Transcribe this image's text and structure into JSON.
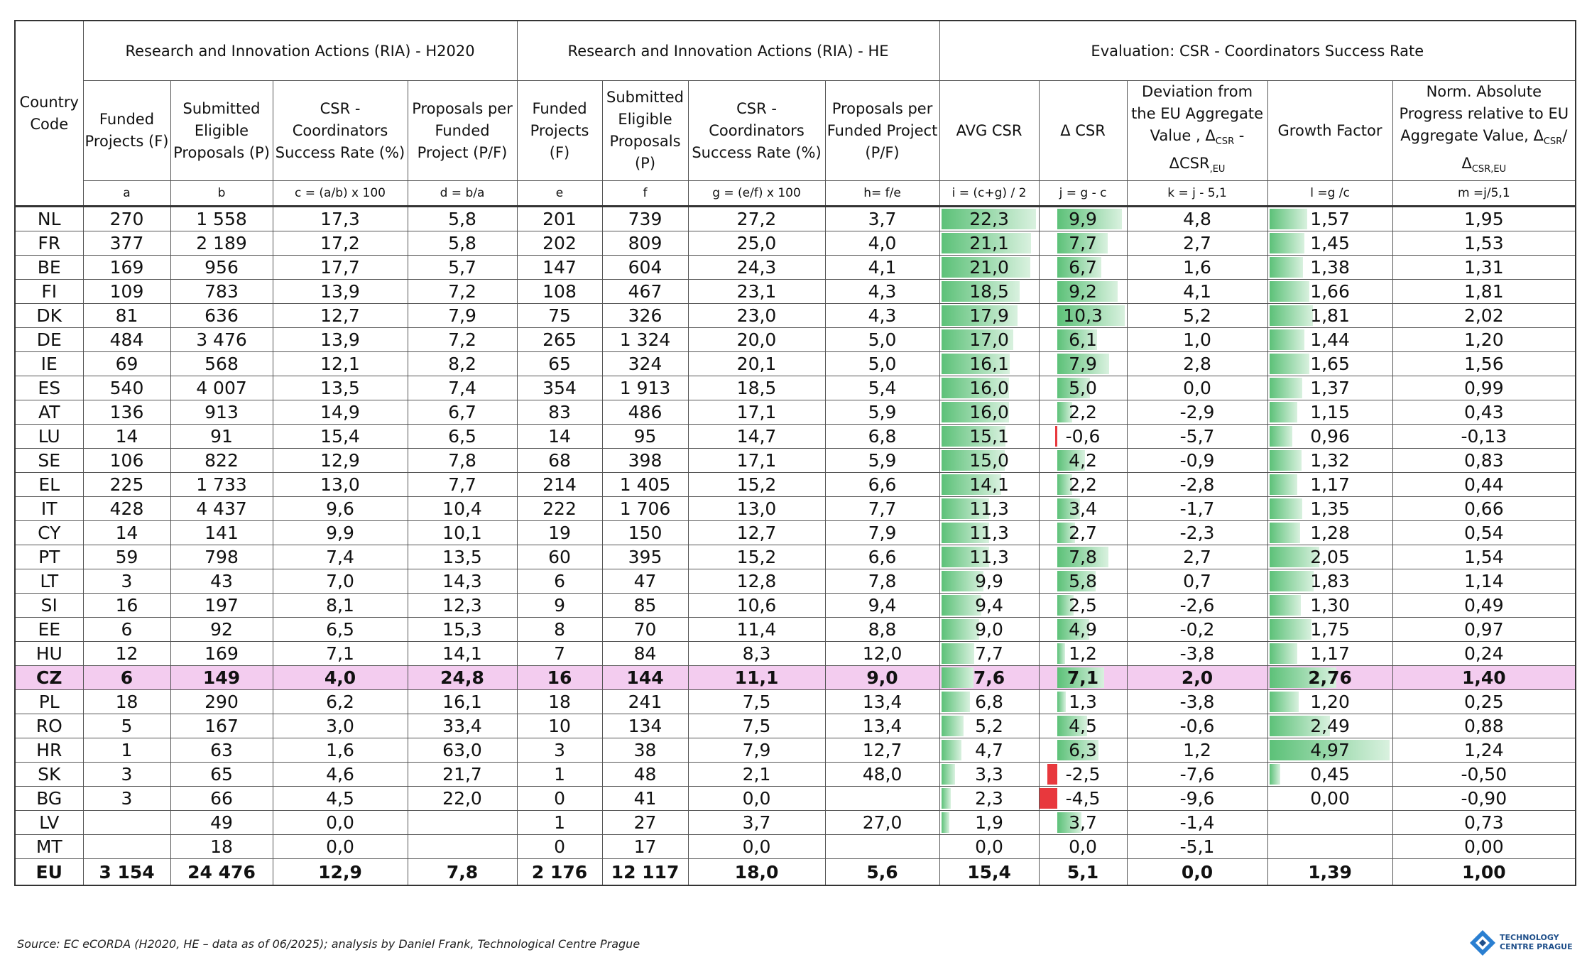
{
  "headers": {
    "country_code": "Country Code",
    "group_h2020": "Research and Innovation Actions (RIA) - H2020",
    "group_he": "Research and Innovation Actions (RIA) - HE",
    "group_eval": "Evaluation: CSR - Coordinators Success Rate",
    "funded_projects": "Funded Projects (F)",
    "submitted_eligible": "Submitted Eligible Proposals (P)",
    "csr_rate": "CSR - Coordinators Success Rate (%)",
    "proposals_per_funded": "Proposals per Funded Project (P/F)",
    "proposals_per_funded_he": "Proposals per Funded Project (P/F)",
    "avg_csr": "AVG CSR",
    "delta_csr": "Δ CSR",
    "deviation": "Deviation from the EU Aggregate Value , Δ",
    "deviation_sub1": "CSR",
    "deviation_mid": " - ΔCSR",
    "deviation_sub2": ",EU",
    "growth_factor": "Growth Factor",
    "norm_progress": "Norm. Absolute Progress relative to EU Aggregate Value, Δ",
    "norm_sub1": "CSR",
    "norm_mid": "/Δ",
    "norm_sub2": "CSR,EU"
  },
  "formulas": [
    "a",
    "b",
    "c = (a/b) x 100",
    "d = b/a",
    "e",
    "f",
    "g = (e/f) x 100",
    "h= f/e",
    "i = (c+g) / 2",
    "j = g - c",
    "k = j - 5,1",
    "l =g /c",
    "m =j/5,1"
  ],
  "rows": [
    {
      "cc": "NL",
      "a": "270",
      "b": "1 558",
      "c": "17,3",
      "d": "5,8",
      "e": "201",
      "f": "739",
      "g": "27,2",
      "h": "3,7",
      "i": "22,3",
      "j": "9,9",
      "k": "4,8",
      "l": "1,57",
      "m": "1,95",
      "iv": 22.3,
      "jv": 9.9,
      "lv": 1.57
    },
    {
      "cc": "FR",
      "a": "377",
      "b": "2 189",
      "c": "17,2",
      "d": "5,8",
      "e": "202",
      "f": "809",
      "g": "25,0",
      "h": "4,0",
      "i": "21,1",
      "j": "7,7",
      "k": "2,7",
      "l": "1,45",
      "m": "1,53",
      "iv": 21.1,
      "jv": 7.7,
      "lv": 1.45
    },
    {
      "cc": "BE",
      "a": "169",
      "b": "956",
      "c": "17,7",
      "d": "5,7",
      "e": "147",
      "f": "604",
      "g": "24,3",
      "h": "4,1",
      "i": "21,0",
      "j": "6,7",
      "k": "1,6",
      "l": "1,38",
      "m": "1,31",
      "iv": 21.0,
      "jv": 6.7,
      "lv": 1.38
    },
    {
      "cc": "FI",
      "a": "109",
      "b": "783",
      "c": "13,9",
      "d": "7,2",
      "e": "108",
      "f": "467",
      "g": "23,1",
      "h": "4,3",
      "i": "18,5",
      "j": "9,2",
      "k": "4,1",
      "l": "1,66",
      "m": "1,81",
      "iv": 18.5,
      "jv": 9.2,
      "lv": 1.66
    },
    {
      "cc": "DK",
      "a": "81",
      "b": "636",
      "c": "12,7",
      "d": "7,9",
      "e": "75",
      "f": "326",
      "g": "23,0",
      "h": "4,3",
      "i": "17,9",
      "j": "10,3",
      "k": "5,2",
      "l": "1,81",
      "m": "2,02",
      "iv": 17.9,
      "jv": 10.3,
      "lv": 1.81
    },
    {
      "cc": "DE",
      "a": "484",
      "b": "3 476",
      "c": "13,9",
      "d": "7,2",
      "e": "265",
      "f": "1 324",
      "g": "20,0",
      "h": "5,0",
      "i": "17,0",
      "j": "6,1",
      "k": "1,0",
      "l": "1,44",
      "m": "1,20",
      "iv": 17.0,
      "jv": 6.1,
      "lv": 1.44
    },
    {
      "cc": "IE",
      "a": "69",
      "b": "568",
      "c": "12,1",
      "d": "8,2",
      "e": "65",
      "f": "324",
      "g": "20,1",
      "h": "5,0",
      "i": "16,1",
      "j": "7,9",
      "k": "2,8",
      "l": "1,65",
      "m": "1,56",
      "iv": 16.1,
      "jv": 7.9,
      "lv": 1.65
    },
    {
      "cc": "ES",
      "a": "540",
      "b": "4 007",
      "c": "13,5",
      "d": "7,4",
      "e": "354",
      "f": "1 913",
      "g": "18,5",
      "h": "5,4",
      "i": "16,0",
      "j": "5,0",
      "k": "0,0",
      "l": "1,37",
      "m": "0,99",
      "iv": 16.0,
      "jv": 5.0,
      "lv": 1.37
    },
    {
      "cc": "AT",
      "a": "136",
      "b": "913",
      "c": "14,9",
      "d": "6,7",
      "e": "83",
      "f": "486",
      "g": "17,1",
      "h": "5,9",
      "i": "16,0",
      "j": "2,2",
      "k": "-2,9",
      "l": "1,15",
      "m": "0,43",
      "iv": 16.0,
      "jv": 2.2,
      "lv": 1.15
    },
    {
      "cc": "LU",
      "a": "14",
      "b": "91",
      "c": "15,4",
      "d": "6,5",
      "e": "14",
      "f": "95",
      "g": "14,7",
      "h": "6,8",
      "i": "15,1",
      "j": "-0,6",
      "k": "-5,7",
      "l": "0,96",
      "m": "-0,13",
      "iv": 15.1,
      "jv": -0.6,
      "lv": 0.96
    },
    {
      "cc": "SE",
      "a": "106",
      "b": "822",
      "c": "12,9",
      "d": "7,8",
      "e": "68",
      "f": "398",
      "g": "17,1",
      "h": "5,9",
      "i": "15,0",
      "j": "4,2",
      "k": "-0,9",
      "l": "1,32",
      "m": "0,83",
      "iv": 15.0,
      "jv": 4.2,
      "lv": 1.32
    },
    {
      "cc": "EL",
      "a": "225",
      "b": "1 733",
      "c": "13,0",
      "d": "7,7",
      "e": "214",
      "f": "1 405",
      "g": "15,2",
      "h": "6,6",
      "i": "14,1",
      "j": "2,2",
      "k": "-2,8",
      "l": "1,17",
      "m": "0,44",
      "iv": 14.1,
      "jv": 2.2,
      "lv": 1.17
    },
    {
      "cc": "IT",
      "a": "428",
      "b": "4 437",
      "c": "9,6",
      "d": "10,4",
      "e": "222",
      "f": "1 706",
      "g": "13,0",
      "h": "7,7",
      "i": "11,3",
      "j": "3,4",
      "k": "-1,7",
      "l": "1,35",
      "m": "0,66",
      "iv": 11.3,
      "jv": 3.4,
      "lv": 1.35
    },
    {
      "cc": "CY",
      "a": "14",
      "b": "141",
      "c": "9,9",
      "d": "10,1",
      "e": "19",
      "f": "150",
      "g": "12,7",
      "h": "7,9",
      "i": "11,3",
      "j": "2,7",
      "k": "-2,3",
      "l": "1,28",
      "m": "0,54",
      "iv": 11.3,
      "jv": 2.7,
      "lv": 1.28
    },
    {
      "cc": "PT",
      "a": "59",
      "b": "798",
      "c": "7,4",
      "d": "13,5",
      "e": "60",
      "f": "395",
      "g": "15,2",
      "h": "6,6",
      "i": "11,3",
      "j": "7,8",
      "k": "2,7",
      "l": "2,05",
      "m": "1,54",
      "iv": 11.3,
      "jv": 7.8,
      "lv": 2.05
    },
    {
      "cc": "LT",
      "a": "3",
      "b": "43",
      "c": "7,0",
      "d": "14,3",
      "e": "6",
      "f": "47",
      "g": "12,8",
      "h": "7,8",
      "i": "9,9",
      "j": "5,8",
      "k": "0,7",
      "l": "1,83",
      "m": "1,14",
      "iv": 9.9,
      "jv": 5.8,
      "lv": 1.83
    },
    {
      "cc": "SI",
      "a": "16",
      "b": "197",
      "c": "8,1",
      "d": "12,3",
      "e": "9",
      "f": "85",
      "g": "10,6",
      "h": "9,4",
      "i": "9,4",
      "j": "2,5",
      "k": "-2,6",
      "l": "1,30",
      "m": "0,49",
      "iv": 9.4,
      "jv": 2.5,
      "lv": 1.3
    },
    {
      "cc": "EE",
      "a": "6",
      "b": "92",
      "c": "6,5",
      "d": "15,3",
      "e": "8",
      "f": "70",
      "g": "11,4",
      "h": "8,8",
      "i": "9,0",
      "j": "4,9",
      "k": "-0,2",
      "l": "1,75",
      "m": "0,97",
      "iv": 9.0,
      "jv": 4.9,
      "lv": 1.75
    },
    {
      "cc": "HU",
      "a": "12",
      "b": "169",
      "c": "7,1",
      "d": "14,1",
      "e": "7",
      "f": "84",
      "g": "8,3",
      "h": "12,0",
      "i": "7,7",
      "j": "1,2",
      "k": "-3,8",
      "l": "1,17",
      "m": "0,24",
      "iv": 7.7,
      "jv": 1.2,
      "lv": 1.17
    },
    {
      "cc": "CZ",
      "a": "6",
      "b": "149",
      "c": "4,0",
      "d": "24,8",
      "e": "16",
      "f": "144",
      "g": "11,1",
      "h": "9,0",
      "i": "7,6",
      "j": "7,1",
      "k": "2,0",
      "l": "2,76",
      "m": "1,40",
      "iv": 7.6,
      "jv": 7.1,
      "lv": 2.76,
      "highlight": true
    },
    {
      "cc": "PL",
      "a": "18",
      "b": "290",
      "c": "6,2",
      "d": "16,1",
      "e": "18",
      "f": "241",
      "g": "7,5",
      "h": "13,4",
      "i": "6,8",
      "j": "1,3",
      "k": "-3,8",
      "l": "1,20",
      "m": "0,25",
      "iv": 6.8,
      "jv": 1.3,
      "lv": 1.2
    },
    {
      "cc": "RO",
      "a": "5",
      "b": "167",
      "c": "3,0",
      "d": "33,4",
      "e": "10",
      "f": "134",
      "g": "7,5",
      "h": "13,4",
      "i": "5,2",
      "j": "4,5",
      "k": "-0,6",
      "l": "2,49",
      "m": "0,88",
      "iv": 5.2,
      "jv": 4.5,
      "lv": 2.49
    },
    {
      "cc": "HR",
      "a": "1",
      "b": "63",
      "c": "1,6",
      "d": "63,0",
      "e": "3",
      "f": "38",
      "g": "7,9",
      "h": "12,7",
      "i": "4,7",
      "j": "6,3",
      "k": "1,2",
      "l": "4,97",
      "m": "1,24",
      "iv": 4.7,
      "jv": 6.3,
      "lv": 4.97
    },
    {
      "cc": "SK",
      "a": "3",
      "b": "65",
      "c": "4,6",
      "d": "21,7",
      "e": "1",
      "f": "48",
      "g": "2,1",
      "h": "48,0",
      "i": "3,3",
      "j": "-2,5",
      "k": "-7,6",
      "l": "0,45",
      "m": "-0,50",
      "iv": 3.3,
      "jv": -2.5,
      "lv": 0.45
    },
    {
      "cc": "BG",
      "a": "3",
      "b": "66",
      "c": "4,5",
      "d": "22,0",
      "e": "0",
      "f": "41",
      "g": "0,0",
      "h": "",
      "i": "2,3",
      "j": "-4,5",
      "k": "-9,6",
      "l": "0,00",
      "m": "-0,90",
      "iv": 2.3,
      "jv": -4.5,
      "lv": 0.0
    },
    {
      "cc": "LV",
      "a": "",
      "b": "49",
      "c": "0,0",
      "d": "",
      "e": "1",
      "f": "27",
      "g": "3,7",
      "h": "27,0",
      "i": "1,9",
      "j": "3,7",
      "k": "-1,4",
      "l": "",
      "m": "0,73",
      "iv": 1.9,
      "jv": 3.7,
      "lv": 0
    },
    {
      "cc": "MT",
      "a": "",
      "b": "18",
      "c": "0,0",
      "d": "",
      "e": "0",
      "f": "17",
      "g": "0,0",
      "h": "",
      "i": "0,0",
      "j": "0,0",
      "k": "-5,1",
      "l": "",
      "m": "0,00",
      "iv": 0.0,
      "jv": 0.0,
      "lv": 0
    }
  ],
  "eu": {
    "cc": "EU",
    "a": "3 154",
    "b": "24 476",
    "c": "12,9",
    "d": "7,8",
    "e": "2 176",
    "f": "12 117",
    "g": "18,0",
    "h": "5,6",
    "i": "15,4",
    "j": "5,1",
    "k": "0,0",
    "l": "1,39",
    "m": "1,00"
  },
  "footer": {
    "source": "Source: EC eCORDA (H2020, HE – data as of 06/2025); analysis by Daniel Frank, Technological Centre Prague",
    "logo_line1": "TECHNOLOGY",
    "logo_line2": "CENTRE PRAGUE"
  },
  "colors": {
    "bar_positive": "#5cc178",
    "bar_negative": "#e8383d",
    "highlight_row": "#f3ccef",
    "logo_blue": "#1f4f8a"
  }
}
